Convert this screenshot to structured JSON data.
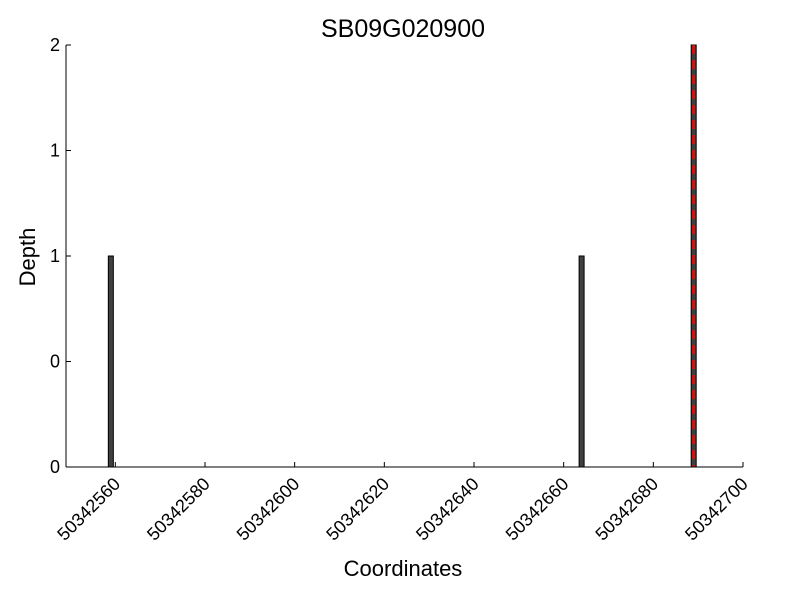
{
  "chart_data": {
    "type": "bar",
    "title": "SB09G020900",
    "xlabel": "Coordinates",
    "ylabel": "Depth",
    "xlim": [
      50342549,
      50342700
    ],
    "ylim": [
      0,
      2
    ],
    "grid": false,
    "x_ticks": [
      50342560,
      50342580,
      50342600,
      50342620,
      50342640,
      50342660,
      50342680,
      50342700
    ],
    "x_tick_labels": [
      "50342560",
      "50342580",
      "50342600",
      "50342620",
      "50342640",
      "50342660",
      "50342680",
      "50342700"
    ],
    "y_ticks": [
      0,
      0.5,
      1,
      1.5,
      2
    ],
    "y_tick_labels": [
      "0",
      "0",
      "1",
      "1",
      "2"
    ],
    "bars": [
      {
        "x": 50342559,
        "value": 1,
        "color": "#404040"
      },
      {
        "x": 50342664,
        "value": 1,
        "color": "#404040"
      },
      {
        "x": 50342689,
        "value": 2,
        "color": "#404040",
        "highlight": "#ff0000"
      }
    ],
    "colors": {
      "bar": "#404040",
      "bar_edge": "#000000",
      "highlight_line": "#ff0000",
      "axes": "#000000"
    }
  }
}
